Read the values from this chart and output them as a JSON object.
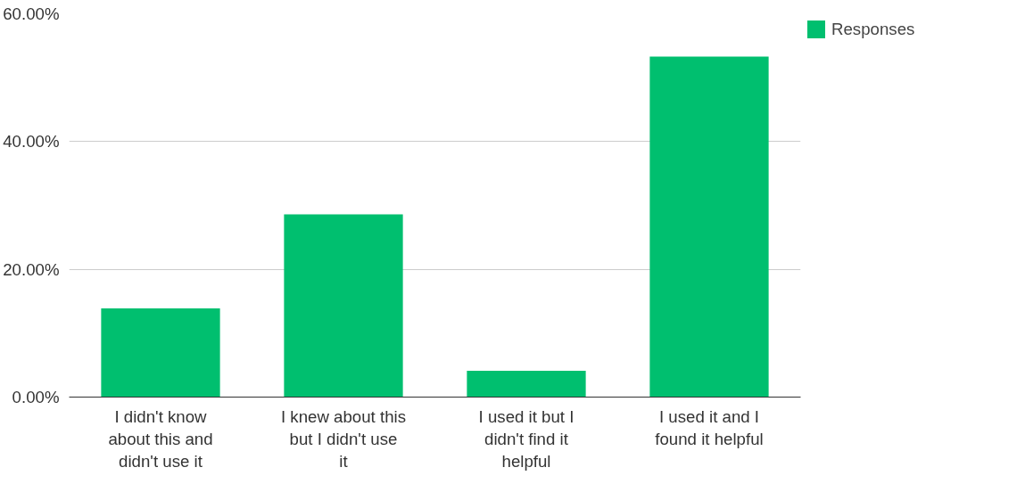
{
  "chart_data": {
    "type": "bar",
    "categories": [
      "I didn't know about this and didn't use it",
      "I knew about this but I didn't use it",
      "I used it but I didn't find it helpful",
      "I used it and I found it helpful"
    ],
    "series": [
      {
        "name": "Responses",
        "color": "#00bf6f",
        "values": [
          13.9,
          28.6,
          4.1,
          53.3
        ]
      }
    ],
    "ylim": [
      0,
      60
    ],
    "yticks": [
      {
        "value": 0,
        "label": "0.00%"
      },
      {
        "value": 20,
        "label": "20.00%"
      },
      {
        "value": 40,
        "label": "40.00%"
      },
      {
        "value": 60,
        "label": "60.00%"
      }
    ],
    "grid": "y",
    "legend": "top right"
  }
}
